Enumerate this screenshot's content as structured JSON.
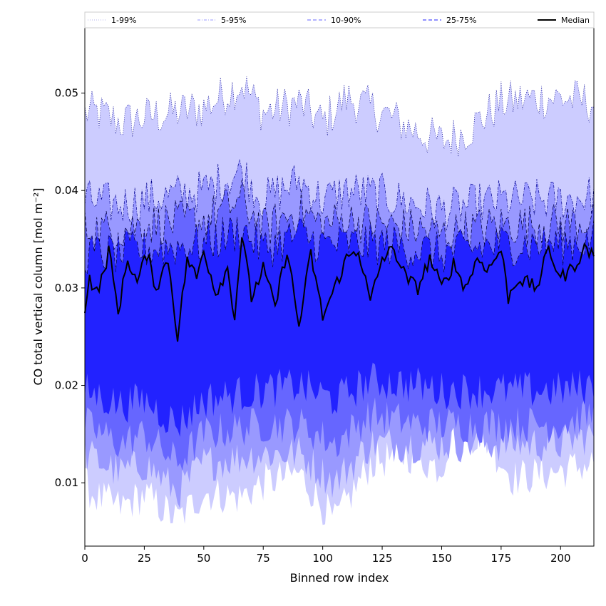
{
  "chart_data": {
    "type": "area",
    "title": "",
    "xlabel": "Binned row index",
    "ylabel": "CO total vertical column [mol m⁻²]",
    "xlim": [
      0,
      214
    ],
    "ylim": [
      0.0035,
      0.0567
    ],
    "xticks": [
      0,
      25,
      50,
      75,
      100,
      125,
      150,
      175,
      200
    ],
    "yticks": [
      0.01,
      0.02,
      0.03,
      0.04,
      0.05
    ],
    "x_count": 215,
    "grid": false,
    "legend_position": "top",
    "bands": [
      {
        "name": "1-99%",
        "color": "#ccccff",
        "line_style": "dotted",
        "lower_anchors": [
          [
            0,
            0.0098
          ],
          [
            5,
            0.0085
          ],
          [
            15,
            0.0075
          ],
          [
            25,
            0.0088
          ],
          [
            39,
            0.0062
          ],
          [
            50,
            0.009
          ],
          [
            65,
            0.0085
          ],
          [
            75,
            0.01
          ],
          [
            90,
            0.011
          ],
          [
            105,
            0.006
          ],
          [
            120,
            0.012
          ],
          [
            135,
            0.013
          ],
          [
            150,
            0.0115
          ],
          [
            155,
            0.016
          ],
          [
            170,
            0.014
          ],
          [
            180,
            0.0105
          ],
          [
            195,
            0.011
          ],
          [
            214,
            0.012
          ]
        ],
        "upper_anchors": [
          [
            0,
            0.048
          ],
          [
            5,
            0.048
          ],
          [
            15,
            0.047
          ],
          [
            25,
            0.0475
          ],
          [
            50,
            0.0485
          ],
          [
            66,
            0.051
          ],
          [
            75,
            0.048
          ],
          [
            90,
            0.049
          ],
          [
            100,
            0.047
          ],
          [
            110,
            0.0495
          ],
          [
            125,
            0.048
          ],
          [
            140,
            0.046
          ],
          [
            150,
            0.045
          ],
          [
            160,
            0.046
          ],
          [
            175,
            0.049
          ],
          [
            190,
            0.0495
          ],
          [
            200,
            0.0495
          ],
          [
            214,
            0.049
          ]
        ]
      },
      {
        "name": "5-95%",
        "color": "#9999ff",
        "line_style": "dashdot",
        "lower_anchors": [
          [
            0,
            0.013
          ],
          [
            15,
            0.011
          ],
          [
            25,
            0.012
          ],
          [
            39,
            0.009
          ],
          [
            50,
            0.012
          ],
          [
            75,
            0.013
          ],
          [
            90,
            0.013
          ],
          [
            105,
            0.01
          ],
          [
            120,
            0.014
          ],
          [
            140,
            0.014
          ],
          [
            150,
            0.014
          ],
          [
            175,
            0.014
          ],
          [
            200,
            0.014
          ],
          [
            214,
            0.015
          ]
        ],
        "upper_anchors": [
          [
            0,
            0.039
          ],
          [
            15,
            0.0385
          ],
          [
            25,
            0.039
          ],
          [
            50,
            0.04
          ],
          [
            66,
            0.042
          ],
          [
            75,
            0.039
          ],
          [
            90,
            0.041
          ],
          [
            100,
            0.039
          ],
          [
            110,
            0.04
          ],
          [
            125,
            0.0395
          ],
          [
            140,
            0.0385
          ],
          [
            150,
            0.038
          ],
          [
            175,
            0.039
          ],
          [
            200,
            0.039
          ],
          [
            214,
            0.0395
          ]
        ]
      },
      {
        "name": "10-90%",
        "color": "#6666ff",
        "line_style": "dashed",
        "lower_anchors": [
          [
            0,
            0.016
          ],
          [
            15,
            0.014
          ],
          [
            25,
            0.015
          ],
          [
            39,
            0.012
          ],
          [
            50,
            0.015
          ],
          [
            75,
            0.016
          ],
          [
            90,
            0.016
          ],
          [
            105,
            0.014
          ],
          [
            120,
            0.017
          ],
          [
            140,
            0.016
          ],
          [
            150,
            0.016
          ],
          [
            175,
            0.016
          ],
          [
            200,
            0.016
          ],
          [
            214,
            0.017
          ]
        ],
        "upper_anchors": [
          [
            0,
            0.036
          ],
          [
            15,
            0.036
          ],
          [
            25,
            0.0365
          ],
          [
            50,
            0.037
          ],
          [
            66,
            0.039
          ],
          [
            75,
            0.036
          ],
          [
            90,
            0.038
          ],
          [
            100,
            0.0365
          ],
          [
            110,
            0.037
          ],
          [
            125,
            0.0365
          ],
          [
            140,
            0.036
          ],
          [
            150,
            0.0355
          ],
          [
            175,
            0.0365
          ],
          [
            200,
            0.0365
          ],
          [
            214,
            0.037
          ]
        ]
      },
      {
        "name": "25-75%",
        "color": "#2222ff",
        "line_style": "dashed",
        "lower_anchors": [
          [
            0,
            0.0195
          ],
          [
            15,
            0.018
          ],
          [
            25,
            0.0185
          ],
          [
            39,
            0.016
          ],
          [
            50,
            0.0185
          ],
          [
            75,
            0.0195
          ],
          [
            90,
            0.02
          ],
          [
            105,
            0.0185
          ],
          [
            120,
            0.0205
          ],
          [
            140,
            0.02
          ],
          [
            150,
            0.0195
          ],
          [
            175,
            0.0195
          ],
          [
            200,
            0.0195
          ],
          [
            214,
            0.02
          ]
        ],
        "upper_anchors": [
          [
            0,
            0.0335
          ],
          [
            15,
            0.0335
          ],
          [
            25,
            0.034
          ],
          [
            50,
            0.0345
          ],
          [
            66,
            0.036
          ],
          [
            75,
            0.034
          ],
          [
            90,
            0.0355
          ],
          [
            100,
            0.0345
          ],
          [
            110,
            0.0345
          ],
          [
            125,
            0.0345
          ],
          [
            140,
            0.034
          ],
          [
            150,
            0.0335
          ],
          [
            175,
            0.0345
          ],
          [
            200,
            0.0345
          ],
          [
            214,
            0.035
          ]
        ]
      }
    ],
    "median": {
      "name": "Median",
      "color": "#000000",
      "anchors": [
        [
          0,
          0.028
        ],
        [
          2,
          0.031
        ],
        [
          5,
          0.0295
        ],
        [
          8,
          0.0315
        ],
        [
          10,
          0.034
        ],
        [
          14,
          0.0275
        ],
        [
          18,
          0.033
        ],
        [
          22,
          0.0305
        ],
        [
          26,
          0.0335
        ],
        [
          30,
          0.03
        ],
        [
          35,
          0.033
        ],
        [
          39,
          0.025
        ],
        [
          43,
          0.033
        ],
        [
          47,
          0.031
        ],
        [
          50,
          0.034
        ],
        [
          55,
          0.0295
        ],
        [
          60,
          0.032
        ],
        [
          63,
          0.027
        ],
        [
          66,
          0.0355
        ],
        [
          70,
          0.029
        ],
        [
          75,
          0.032
        ],
        [
          80,
          0.028
        ],
        [
          85,
          0.034
        ],
        [
          90,
          0.026
        ],
        [
          95,
          0.0335
        ],
        [
          100,
          0.027
        ],
        [
          105,
          0.03
        ],
        [
          110,
          0.033
        ],
        [
          115,
          0.034
        ],
        [
          120,
          0.0285
        ],
        [
          125,
          0.033
        ],
        [
          130,
          0.034
        ],
        [
          135,
          0.031
        ],
        [
          140,
          0.03
        ],
        [
          145,
          0.033
        ],
        [
          150,
          0.03
        ],
        [
          155,
          0.0325
        ],
        [
          160,
          0.03
        ],
        [
          165,
          0.033
        ],
        [
          170,
          0.032
        ],
        [
          175,
          0.034
        ],
        [
          178,
          0.029
        ],
        [
          182,
          0.031
        ],
        [
          190,
          0.03
        ],
        [
          195,
          0.034
        ],
        [
          200,
          0.031
        ],
        [
          205,
          0.032
        ],
        [
          210,
          0.034
        ],
        [
          214,
          0.0335
        ]
      ],
      "noise": 0.0015
    }
  }
}
